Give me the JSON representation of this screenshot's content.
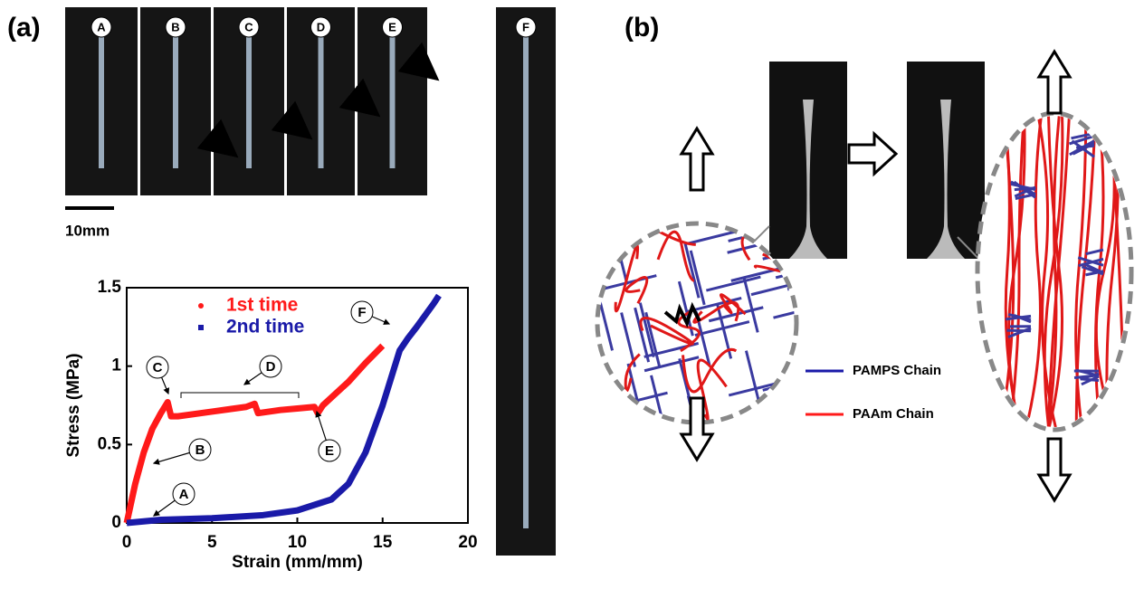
{
  "panels": {
    "a": "(a)",
    "b": "(b)"
  },
  "photos": {
    "labels": [
      "A",
      "B",
      "C",
      "D",
      "E",
      "F"
    ],
    "scale_bar": "10mm"
  },
  "chart_data": {
    "type": "line",
    "xlabel": "Strain (mm/mm)",
    "ylabel": "Stress (MPa)",
    "xlim": [
      0,
      20
    ],
    "ylim": [
      0,
      1.5
    ],
    "xticks": [
      0,
      5,
      10,
      15,
      20
    ],
    "yticks": [
      0,
      0.5,
      1,
      1.5
    ],
    "series": [
      {
        "name": "1st time",
        "color": "#ff1a1a",
        "marker": "circle",
        "x": [
          0,
          0.5,
          1,
          1.5,
          2,
          2.4,
          2.6,
          3,
          5,
          7,
          7.5,
          7.7,
          9,
          10,
          11,
          11.2,
          11.5,
          12,
          13,
          14,
          15
        ],
        "values": [
          0,
          0.25,
          0.45,
          0.6,
          0.7,
          0.77,
          0.68,
          0.68,
          0.71,
          0.74,
          0.76,
          0.7,
          0.72,
          0.73,
          0.74,
          0.7,
          0.75,
          0.8,
          0.9,
          1.02,
          1.13
        ]
      },
      {
        "name": "2nd time",
        "color": "#1a1aa8",
        "marker": "square",
        "x": [
          0,
          2,
          5,
          8,
          10,
          12,
          13,
          14,
          15,
          16,
          16.5,
          17,
          18,
          18.3
        ],
        "values": [
          0,
          0.02,
          0.03,
          0.05,
          0.08,
          0.15,
          0.25,
          0.45,
          0.75,
          1.1,
          1.18,
          1.25,
          1.4,
          1.45
        ]
      }
    ],
    "annotations": [
      "A",
      "B",
      "C",
      "D",
      "E",
      "F"
    ]
  },
  "schematic": {
    "legend": [
      "PAMPS Chain",
      "PAAm Chain"
    ]
  }
}
